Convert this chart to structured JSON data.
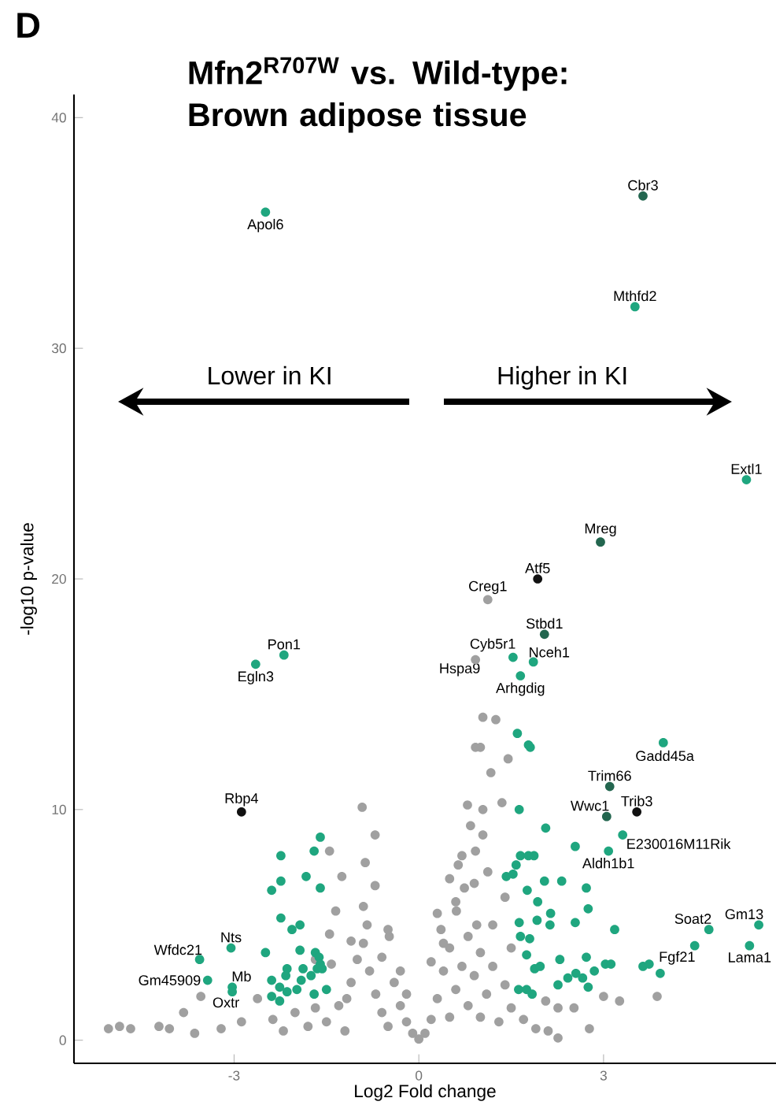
{
  "chart_data": {
    "type": "scatter",
    "title": "Mfn2$^{R707W}$ vs. Wild-type: Brown adipose tissue",
    "xlabel": "Log2 Fold change",
    "ylabel": "-log10 p-value",
    "xlim": [
      -5.6,
      5.8
    ],
    "ylim": [
      -1,
      41
    ],
    "xticks": [
      -3,
      0,
      3
    ],
    "yticks": [
      0,
      10,
      20,
      30,
      40
    ],
    "series": [
      {
        "color": "#a0a0a0",
        "x": [
          1.04,
          1.25,
          0.92,
          1.0,
          1.45,
          1.17,
          0.79,
          1.04,
          1.35,
          0.84,
          1.04,
          0.92,
          0.64,
          1.12,
          0.74,
          0.61,
          0.94,
          0.36,
          2.26,
          2.52,
          2.77,
          2.26,
          3.0,
          3.26,
          3.87,
          2.06,
          -0.92,
          -0.71,
          -1.45,
          -1.25,
          -0.87,
          -0.71,
          -1.35,
          -0.84,
          -0.48,
          -1.45,
          -1.68,
          -1.42,
          -3.54,
          -3.82,
          -2.62,
          -4.22,
          -5.04,
          -4.86,
          -4.68,
          -4.05,
          -3.64,
          -3.21,
          -2.88,
          -2.37,
          -2.01,
          -1.68,
          -1.17,
          -1.5,
          -1.3,
          -1.1,
          -1.0,
          -0.9,
          -0.8,
          -0.7,
          -0.6,
          -0.5,
          -0.4,
          -0.3,
          -0.2,
          -0.1,
          0,
          0.1,
          0.2,
          0.3,
          0.4,
          0.5,
          0.5,
          0.6,
          0.7,
          0.8,
          0.8,
          0.9,
          1.0,
          1.0,
          1.1,
          1.2,
          1.3,
          1.4,
          1.5,
          1.7,
          1.9,
          2.1,
          -1.8,
          -2.2,
          -0.6,
          -1.2,
          0.3,
          0.6,
          0.5,
          0.7,
          0.4,
          -0.3,
          -0.5,
          -0.2,
          0.2,
          1.2,
          1.4,
          1.5,
          0.9,
          -1.1,
          -0.9,
          1.12,
          0.92
        ],
        "values": [
          14.0,
          13.9,
          12.7,
          12.7,
          12.2,
          11.6,
          10.2,
          10.0,
          10.3,
          9.3,
          8.9,
          8.2,
          7.6,
          7.3,
          6.6,
          5.6,
          5.0,
          4.8,
          1.4,
          1.4,
          0.5,
          0.1,
          1.9,
          1.7,
          1.9,
          1.7,
          10.1,
          8.9,
          8.2,
          7.1,
          7.7,
          6.7,
          5.6,
          5.0,
          4.5,
          4.6,
          3.5,
          3.3,
          1.9,
          1.2,
          1.8,
          0.6,
          0.5,
          0.6,
          0.5,
          0.5,
          0.3,
          0.5,
          0.8,
          0.9,
          1.2,
          1.4,
          1.8,
          0.8,
          1.5,
          2.5,
          3.5,
          4.2,
          3.0,
          2.0,
          1.2,
          0.6,
          2.5,
          1.5,
          0.8,
          0.3,
          0.05,
          0.3,
          0.9,
          1.8,
          3.0,
          1.0,
          4.0,
          2.2,
          3.2,
          1.5,
          4.5,
          2.8,
          3.8,
          1.0,
          2.0,
          3.2,
          0.8,
          2.4,
          1.4,
          0.9,
          0.5,
          0.4,
          0.6,
          0.4,
          3.6,
          0.4,
          5.5,
          6.0,
          7.0,
          8.0,
          4.2,
          3.0,
          4.8,
          2.0,
          3.4,
          5.0,
          6.2,
          4.0,
          6.8,
          4.3,
          5.8,
          19.1,
          16.5
        ]
      },
      {
        "color": "#1fa67f",
        "x": [
          1.6,
          1.78,
          1.81,
          1.63,
          2.06,
          2.54,
          1.65,
          1.78,
          1.87,
          1.42,
          1.53,
          1.58,
          1.76,
          2.04,
          2.32,
          2.72,
          1.93,
          2.14,
          2.75,
          1.63,
          1.92,
          2.13,
          2.54,
          3.18,
          1.65,
          1.8,
          1.75,
          2.29,
          2.72,
          3.03,
          3.12,
          1.88,
          1.97,
          2.42,
          2.55,
          2.66,
          2.85,
          3.64,
          3.74,
          3.92,
          2.26,
          2.75,
          1.62,
          1.75,
          1.84,
          -1.6,
          -1.7,
          -2.24,
          -1.83,
          -1.6,
          -2.24,
          -2.39,
          -2.24,
          -2.06,
          -1.93,
          -2.49,
          -1.93,
          -1.68,
          -1.62,
          -1.6,
          -1.65,
          -1.57,
          -1.88,
          -2.14,
          -1.75,
          -2.39,
          -2.26,
          -2.16,
          -1.91,
          -2.39,
          -2.26,
          -2.14,
          -1.98,
          -1.7,
          -1.5,
          -2.49,
          3.51,
          5.32,
          1.53,
          1.86,
          1.65,
          3.97,
          3.31,
          3.08,
          4.71,
          5.52,
          4.48,
          5.37,
          -2.19,
          -2.65,
          -3.05,
          -3.56,
          -3.43,
          -3.03,
          -3.03
        ],
        "values": [
          13.3,
          12.8,
          12.7,
          10.0,
          9.2,
          8.4,
          8.0,
          8.0,
          8.0,
          7.1,
          7.2,
          7.6,
          6.5,
          6.9,
          6.9,
          6.6,
          6.0,
          5.5,
          5.7,
          5.1,
          5.2,
          5.0,
          5.1,
          4.8,
          4.5,
          4.4,
          3.7,
          3.5,
          3.6,
          3.3,
          3.3,
          3.1,
          3.2,
          2.7,
          2.9,
          2.7,
          3.0,
          3.2,
          3.3,
          2.9,
          2.4,
          2.3,
          2.2,
          2.2,
          2.0,
          8.8,
          8.2,
          8.0,
          7.1,
          6.6,
          6.9,
          6.5,
          5.3,
          4.8,
          5.0,
          3.8,
          3.9,
          3.8,
          3.6,
          3.3,
          3.1,
          3.1,
          3.1,
          3.1,
          2.8,
          2.6,
          2.3,
          2.8,
          2.6,
          1.9,
          1.7,
          2.1,
          2.2,
          2.0,
          2.2,
          35.9,
          31.8,
          24.3,
          16.6,
          16.4,
          15.8,
          12.9,
          8.9,
          8.2,
          4.8,
          5.0,
          4.1,
          4.1,
          16.7,
          16.3,
          4.0,
          3.5,
          2.6,
          2.3,
          2.1
        ]
      },
      {
        "color": "#23664f",
        "x": [
          3.64,
          2.95,
          2.04,
          3.1,
          3.05
        ],
        "values": [
          36.6,
          21.6,
          17.6,
          11.0,
          9.7
        ]
      },
      {
        "color": "#111111",
        "x": [
          1.93,
          3.54,
          -2.88
        ],
        "values": [
          20.0,
          9.9,
          9.9
        ]
      }
    ],
    "annotations": [
      "D",
      "Lower in KI",
      "Higher in KI",
      {
        "text": "Apol6",
        "x": -2.49,
        "y": 35.9
      },
      {
        "text": "Cbr3",
        "x": 3.64,
        "y": 36.6
      },
      {
        "text": "Mthfd2",
        "x": 3.51,
        "y": 31.8
      },
      {
        "text": "Extl1",
        "x": 5.32,
        "y": 24.3
      },
      {
        "text": "Mreg",
        "x": 2.95,
        "y": 21.6
      },
      {
        "text": "Atf5",
        "x": 1.93,
        "y": 20.0
      },
      {
        "text": "Creg1",
        "x": 1.12,
        "y": 19.1
      },
      {
        "text": "Stbd1",
        "x": 2.04,
        "y": 17.6
      },
      {
        "text": "Cyb5r1",
        "x": 1.53,
        "y": 16.6
      },
      {
        "text": "Nceh1",
        "x": 1.86,
        "y": 16.4
      },
      {
        "text": "Hspa9",
        "x": 0.92,
        "y": 16.5
      },
      {
        "text": "Arhgdig",
        "x": 1.65,
        "y": 15.8
      },
      {
        "text": "Gadd45a",
        "x": 3.97,
        "y": 12.9
      },
      {
        "text": "Trim66",
        "x": 3.1,
        "y": 11.0
      },
      {
        "text": "Wwc1",
        "x": 3.05,
        "y": 9.7
      },
      {
        "text": "Trib3",
        "x": 3.54,
        "y": 9.9
      },
      {
        "text": "E230016M11Rik",
        "x": 3.31,
        "y": 8.9
      },
      {
        "text": "Aldh1b1",
        "x": 3.08,
        "y": 8.2
      },
      {
        "text": "Soat2",
        "x": 4.71,
        "y": 4.8
      },
      {
        "text": "Gm13",
        "x": 5.52,
        "y": 5.0
      },
      {
        "text": "Fgf21",
        "x": 4.48,
        "y": 4.1
      },
      {
        "text": "Lama1",
        "x": 5.37,
        "y": 4.1
      },
      {
        "text": "Pon1",
        "x": -2.19,
        "y": 16.7
      },
      {
        "text": "Egln3",
        "x": -2.65,
        "y": 16.3
      },
      {
        "text": "Rbp4",
        "x": -2.88,
        "y": 9.9
      },
      {
        "text": "Nts",
        "x": -3.05,
        "y": 4.0
      },
      {
        "text": "Wfdc21",
        "x": -3.56,
        "y": 3.5
      },
      {
        "text": "Gm45909",
        "x": -3.43,
        "y": 2.6
      },
      {
        "text": "Mb",
        "x": -3.03,
        "y": 2.3
      },
      {
        "text": "Oxtr",
        "x": -3.03,
        "y": 2.1
      }
    ]
  }
}
